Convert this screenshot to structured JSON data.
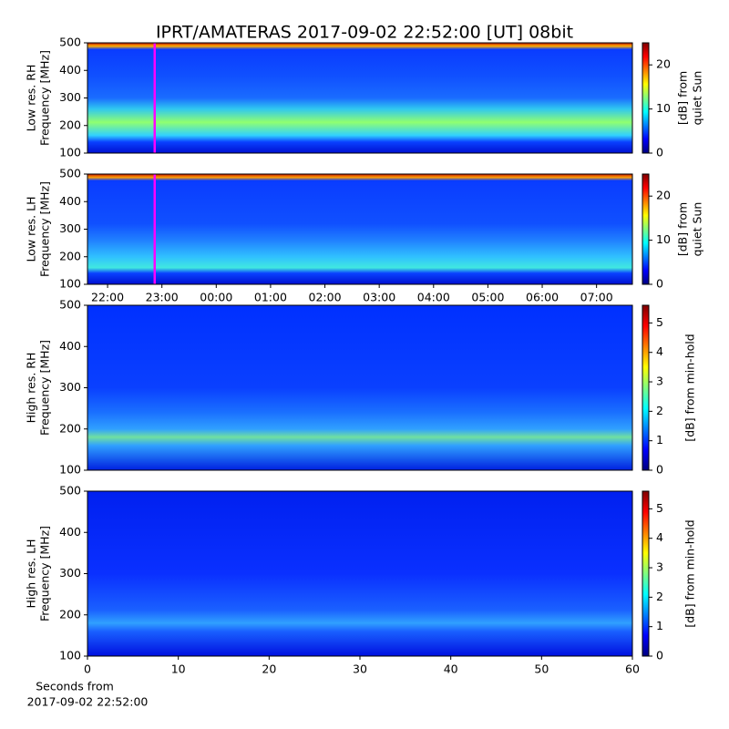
{
  "title": "IPRT/AMATERAS 2017-09-02 22:52:00 [UT]   08bit",
  "chart_data": [
    {
      "type": "heatmap",
      "ylabel": [
        "Low res. RH",
        "Frequency [MHz]"
      ],
      "ylim": [
        100,
        500
      ],
      "yticks": [
        100,
        200,
        300,
        400,
        500
      ],
      "xlim": [
        21.63,
        31.66
      ],
      "marker_x": 22.867,
      "marker_color": "#ff00ff",
      "colormap": "jet",
      "clim": [
        0,
        25
      ],
      "cticks": [
        0,
        10,
        20
      ],
      "clabel": [
        "[dB] from",
        "quiet Sun"
      ]
    },
    {
      "type": "heatmap",
      "ylabel": [
        "Low res. LH",
        "Frequency [MHz]"
      ],
      "ylim": [
        100,
        500
      ],
      "yticks": [
        100,
        200,
        300,
        400,
        500
      ],
      "xlim": [
        21.63,
        31.66
      ],
      "marker_x": 22.867,
      "marker_color": "#ff00ff",
      "xticks": [
        {
          "value": 22,
          "label": "22:00"
        },
        {
          "value": 23,
          "label": "23:00"
        },
        {
          "value": 24,
          "label": "00:00"
        },
        {
          "value": 25,
          "label": "01:00"
        },
        {
          "value": 26,
          "label": "02:00"
        },
        {
          "value": 27,
          "label": "03:00"
        },
        {
          "value": 28,
          "label": "04:00"
        },
        {
          "value": 29,
          "label": "05:00"
        },
        {
          "value": 30,
          "label": "06:00"
        },
        {
          "value": 31,
          "label": "07:00"
        }
      ],
      "colormap": "jet",
      "clim": [
        0,
        25
      ],
      "cticks": [
        0,
        10,
        20
      ],
      "clabel": [
        "[dB] from",
        "quiet Sun"
      ]
    },
    {
      "type": "heatmap",
      "ylabel": [
        "High res. RH",
        "Frequency [MHz]"
      ],
      "ylim": [
        100,
        500
      ],
      "yticks": [
        100,
        200,
        300,
        400,
        500
      ],
      "xlim": [
        0,
        60
      ],
      "colormap": "jet",
      "clim": [
        0,
        5.6
      ],
      "cticks": [
        0,
        1,
        2,
        3,
        4,
        5
      ],
      "clabel": [
        "[dB] from min-hold"
      ]
    },
    {
      "type": "heatmap",
      "ylabel": [
        "High res. LH",
        "Frequency [MHz]"
      ],
      "ylim": [
        100,
        500
      ],
      "yticks": [
        100,
        200,
        300,
        400,
        500
      ],
      "xlim": [
        0,
        60
      ],
      "xticks": [
        0,
        10,
        20,
        30,
        40,
        50,
        60
      ],
      "xlabel": [
        "Seconds from",
        "2017-09-02 22:52:00"
      ],
      "colormap": "jet",
      "clim": [
        0,
        5.6
      ],
      "cticks": [
        0,
        1,
        2,
        3,
        4,
        5
      ],
      "clabel": [
        "[dB] from min-hold"
      ]
    }
  ]
}
